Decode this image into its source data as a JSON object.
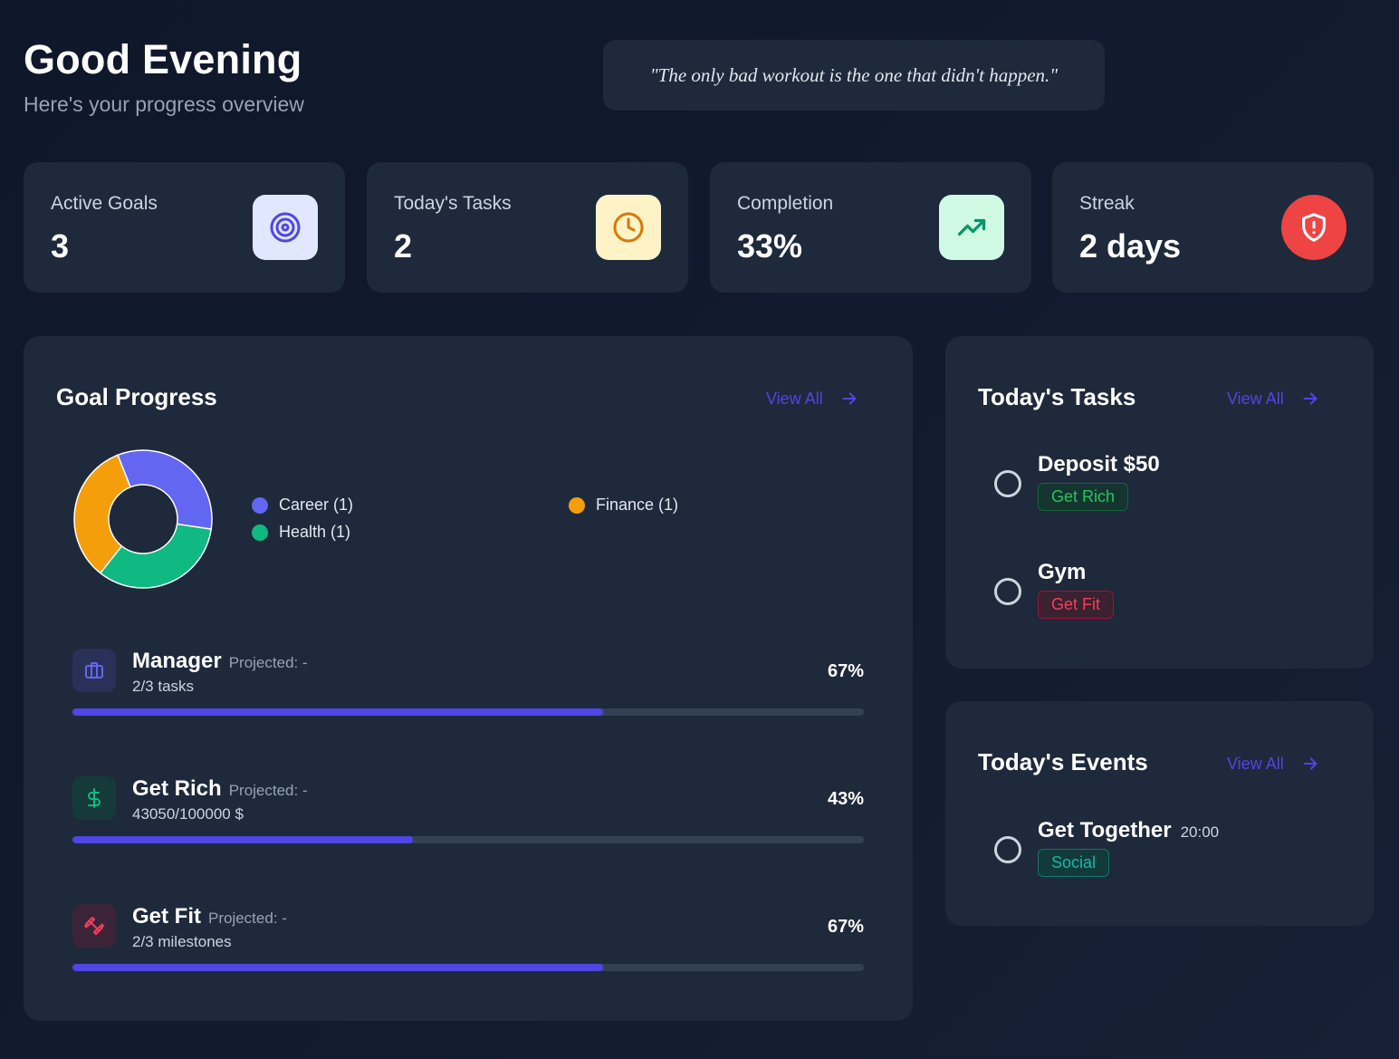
{
  "header": {
    "greeting": "Good Evening",
    "subtitle": "Here's your progress overview",
    "quote": "\"The only bad workout is the one that didn't happen.\""
  },
  "stats": [
    {
      "label": "Active Goals",
      "value": "3",
      "icon": "target-icon",
      "icon_bg": "#e0e7ff",
      "icon_color": "#4f46e5"
    },
    {
      "label": "Today's Tasks",
      "value": "2",
      "icon": "clock-icon",
      "icon_bg": "#fef3c7",
      "icon_color": "#d97706"
    },
    {
      "label": "Completion",
      "value": "33%",
      "icon": "trending-up-icon",
      "icon_bg": "#d1fae5",
      "icon_color": "#059669"
    },
    {
      "label": "Streak",
      "value": "2 days",
      "icon": "shield-alert-icon",
      "icon_bg": "#ef4444",
      "icon_color": "#ffffff"
    }
  ],
  "goal_progress": {
    "title": "Goal Progress",
    "view_all": "View All",
    "legend": [
      {
        "label": "Career (1)",
        "color": "#6366f1"
      },
      {
        "label": "Finance (1)",
        "color": "#f59e0b"
      },
      {
        "label": "Health (1)",
        "color": "#10b981"
      }
    ],
    "goals": [
      {
        "name": "Manager",
        "projected": "Projected: -",
        "sub": "2/3 tasks",
        "percent_label": "67%",
        "progress": 0.67,
        "icon": "briefcase-icon",
        "icon_bg": "#2a3158",
        "icon_color": "#6366f1"
      },
      {
        "name": "Get Rich",
        "projected": "Projected: -",
        "sub": "43050/100000 $",
        "percent_label": "43%",
        "progress": 0.43,
        "icon": "dollar-icon",
        "icon_bg": "#163a3a",
        "icon_color": "#10b981"
      },
      {
        "name": "Get Fit",
        "projected": "Projected: -",
        "sub": "2/3 milestones",
        "percent_label": "67%",
        "progress": 0.67,
        "icon": "dumbbell-icon",
        "icon_bg": "#3b2438",
        "icon_color": "#f43f5e"
      }
    ]
  },
  "chart_data": {
    "type": "pie",
    "categories": [
      "Career",
      "Health",
      "Finance"
    ],
    "values": [
      1,
      1,
      1
    ],
    "colors": [
      "#6366f1",
      "#10b981",
      "#f59e0b"
    ],
    "legend": "right"
  },
  "tasks": {
    "title": "Today's Tasks",
    "view_all": "View All",
    "items": [
      {
        "name": "Deposit $50",
        "tag": "Get Rich",
        "tag_color": "#22c55e",
        "tag_bg": "#14352f",
        "tag_border": "#166534"
      },
      {
        "name": "Gym",
        "tag": "Get Fit",
        "tag_color": "#f43f5e",
        "tag_bg": "#3a2230",
        "tag_border": "#9f1239"
      }
    ]
  },
  "events": {
    "title": "Today's Events",
    "view_all": "View All",
    "items": [
      {
        "name": "Get Together",
        "time": "20:00",
        "tag": "Social",
        "tag_color": "#14b8a6",
        "tag_bg": "#123a3a",
        "tag_border": "#0f766e"
      }
    ]
  }
}
